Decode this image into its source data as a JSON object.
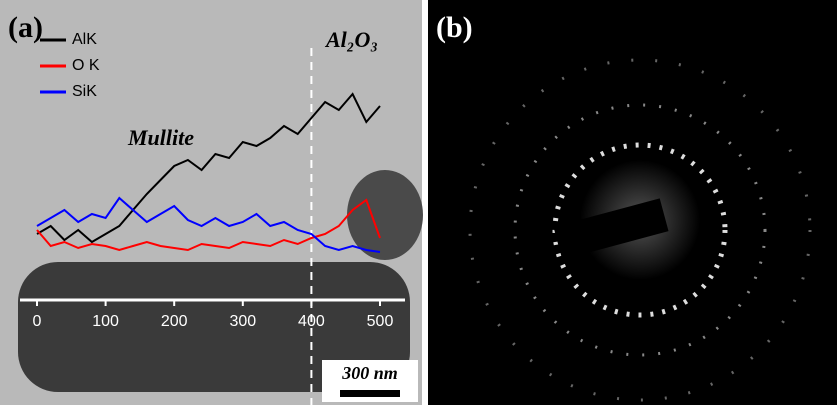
{
  "figure": {
    "panel_a": "(a)",
    "panel_b": "(b)",
    "scale_bar": "300 nm"
  },
  "chart_data": {
    "type": "line",
    "annotations": [
      "Mullite",
      "Al₂O₃"
    ],
    "x": [
      0,
      20,
      40,
      60,
      80,
      100,
      120,
      140,
      160,
      180,
      200,
      220,
      240,
      260,
      280,
      300,
      320,
      340,
      360,
      380,
      400,
      420,
      440,
      460,
      480,
      500
    ],
    "series": [
      {
        "name": "AlK",
        "color": "#000000",
        "values": [
          18,
          22,
          15,
          20,
          14,
          18,
          22,
          30,
          38,
          45,
          52,
          55,
          50,
          58,
          56,
          64,
          62,
          66,
          72,
          68,
          76,
          84,
          80,
          88,
          74,
          82
        ]
      },
      {
        "name": "O K",
        "color": "#ff0000",
        "values": [
          20,
          12,
          14,
          11,
          13,
          12,
          10,
          12,
          14,
          12,
          11,
          10,
          13,
          12,
          11,
          14,
          13,
          12,
          15,
          13,
          16,
          18,
          22,
          30,
          35,
          16
        ]
      },
      {
        "name": "SiK",
        "color": "#0000ff",
        "values": [
          22,
          26,
          30,
          24,
          28,
          26,
          36,
          30,
          24,
          28,
          32,
          25,
          22,
          26,
          22,
          24,
          28,
          22,
          24,
          20,
          18,
          12,
          10,
          12,
          10,
          9
        ]
      }
    ],
    "xlim": [
      0,
      500
    ],
    "xticks": [
      0,
      100,
      200,
      300,
      400,
      500
    ],
    "ylim": [
      0,
      100
    ],
    "vline": 400,
    "grid": false
  }
}
